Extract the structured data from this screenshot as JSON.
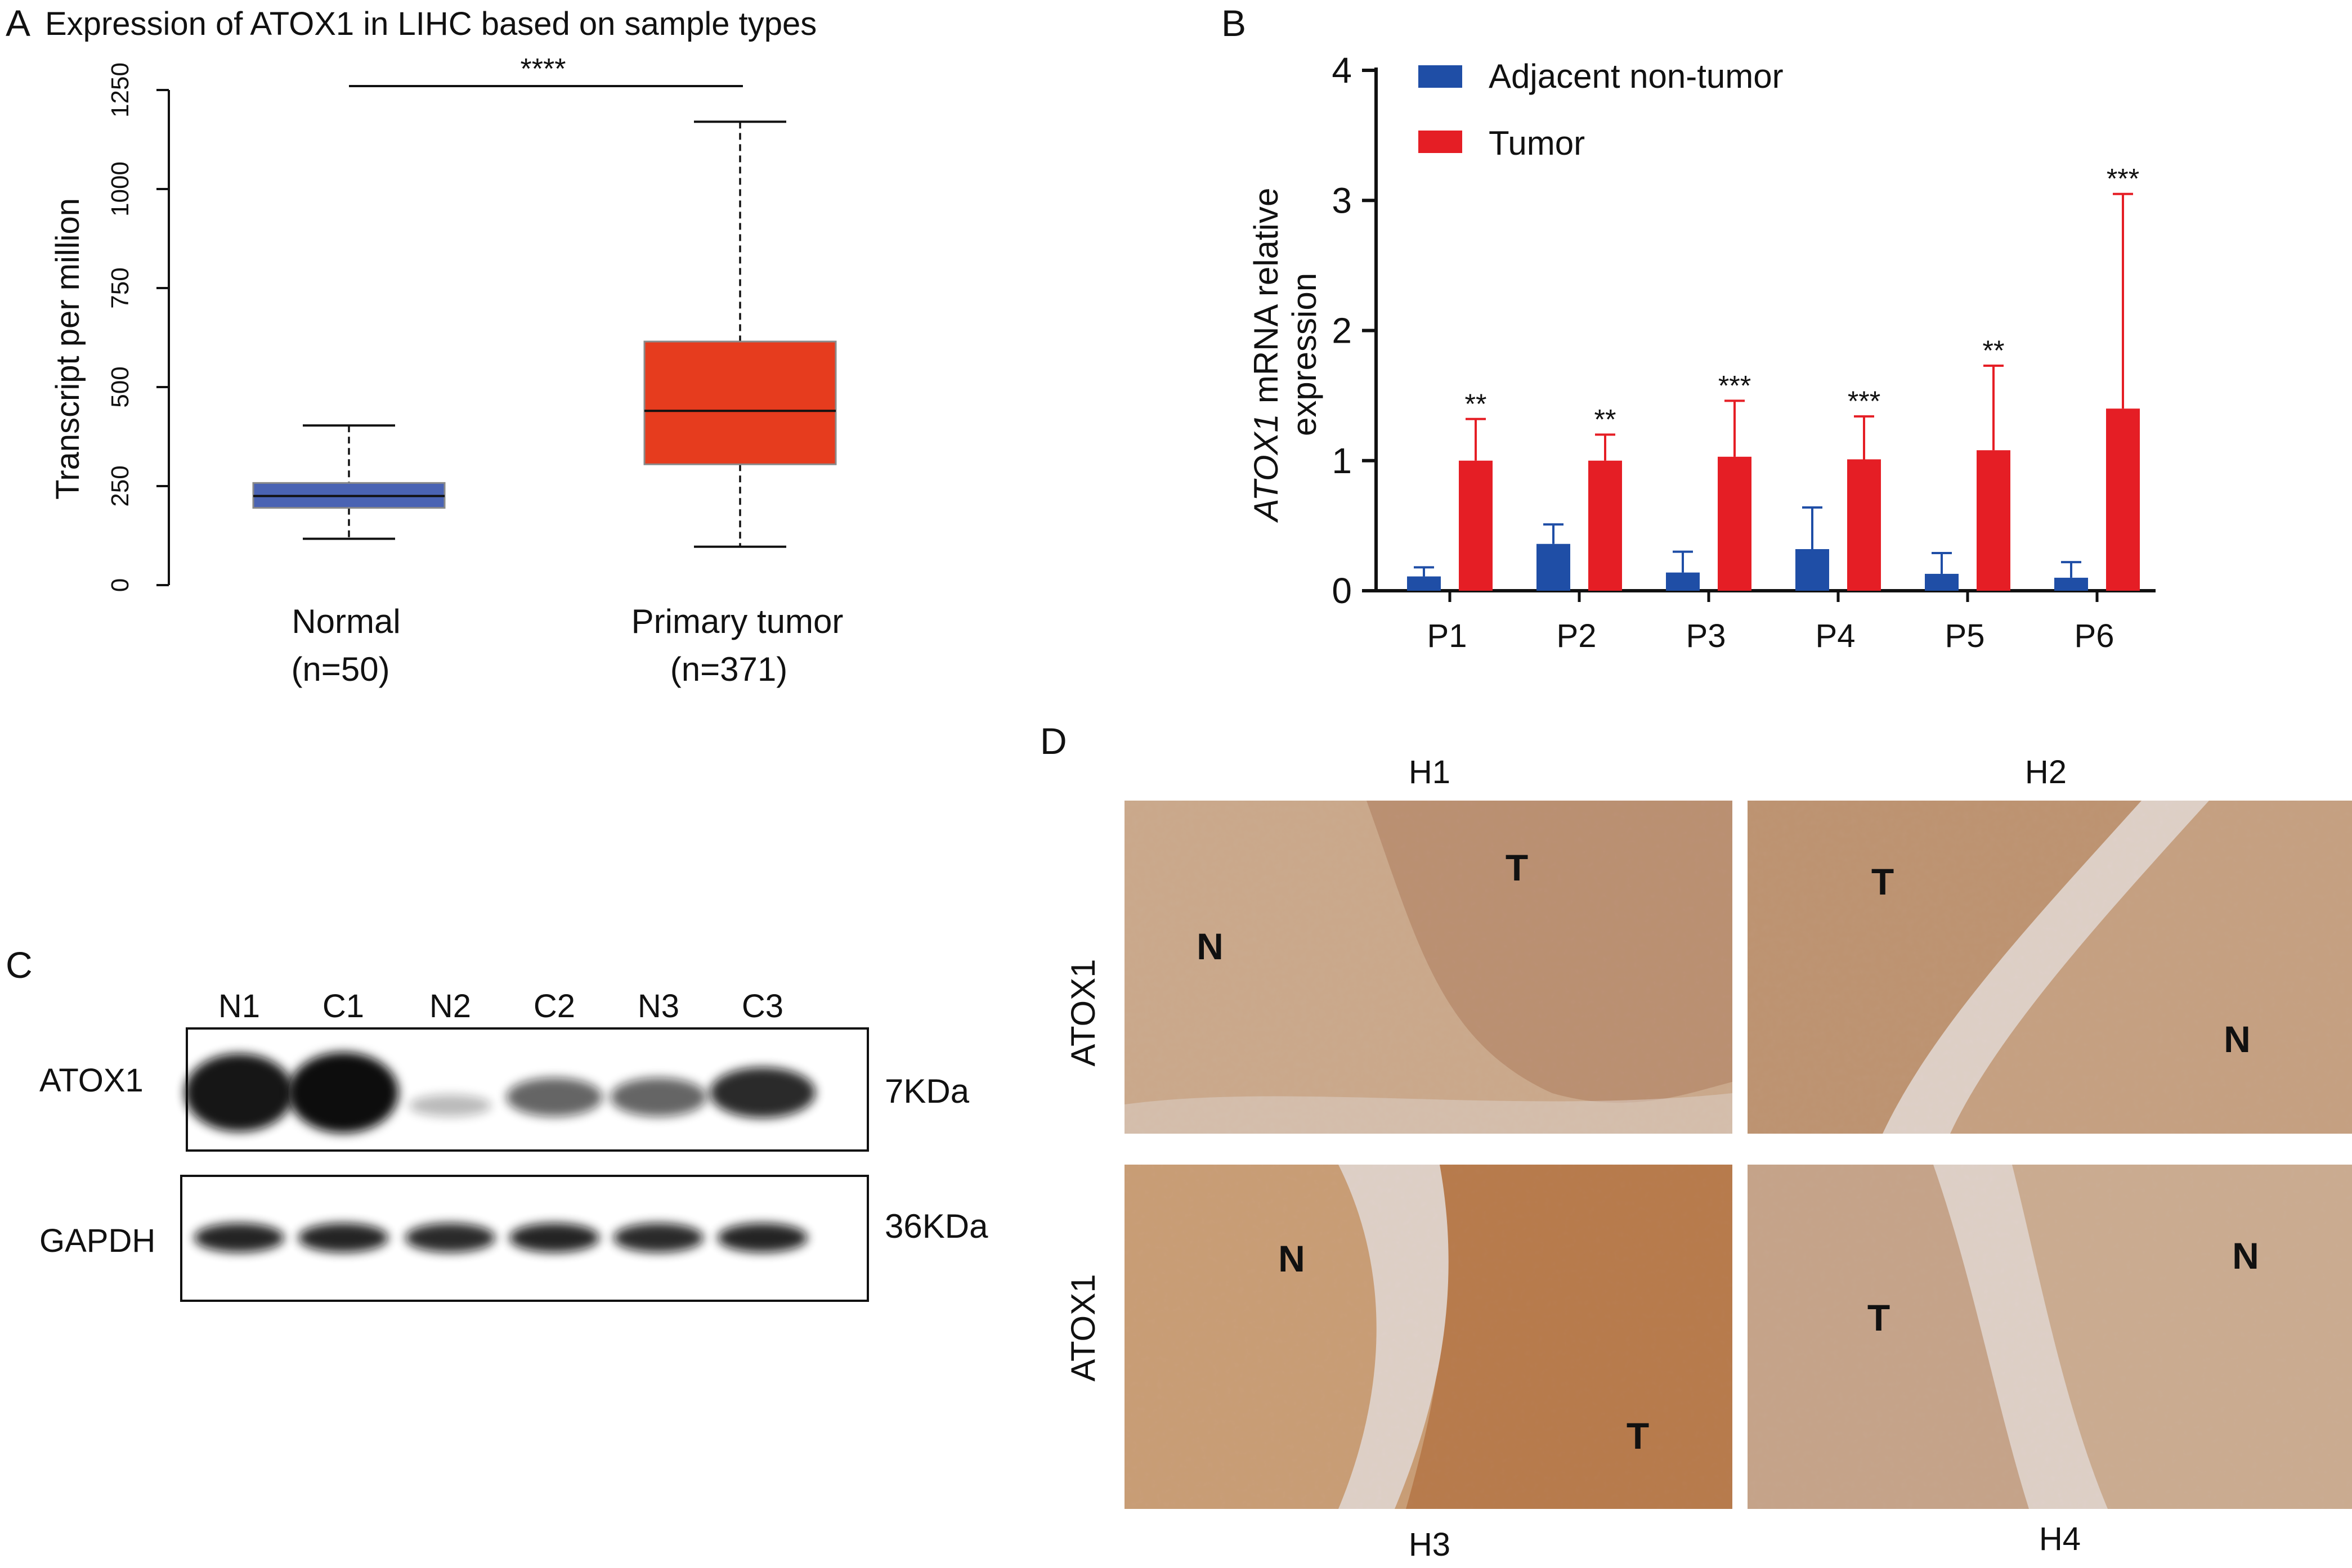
{
  "panel_labels": {
    "a": "A",
    "b": "B",
    "c": "C",
    "d": "D"
  },
  "chart_data": [
    {
      "type": "box",
      "panel": "A",
      "title": "Expression of ATOX1 in LIHC based on sample types",
      "xlabel": "",
      "ylabel": "Transcript per million",
      "ylim": [
        0,
        1250
      ],
      "yticks": [
        "0",
        "250",
        "500",
        "750",
        "1000",
        "1250"
      ],
      "categories": [
        {
          "name": "Normal",
          "n_label": "(n=50)",
          "min": 117,
          "q1": 195,
          "median": 225,
          "q3": 258,
          "max": 403,
          "color": "#4a63b3"
        },
        {
          "name": "Primary tumor",
          "n_label": "(n=371)",
          "min": 97,
          "q1": 305,
          "median": 440,
          "q3": 615,
          "max": 1170,
          "color": "#e63c1e"
        }
      ],
      "significance": "****",
      "grid": false
    },
    {
      "type": "bar",
      "panel": "B",
      "ylabel_italic": "ATOX1",
      "ylabel_rest": "mRNA  relative",
      "ylabel_line2": "expression",
      "xlabel": "",
      "ylim": [
        0,
        4
      ],
      "yticks": [
        "0",
        "1",
        "2",
        "3",
        "4"
      ],
      "categories": [
        "P1",
        "P2",
        "P3",
        "P4",
        "P5",
        "P6"
      ],
      "series": [
        {
          "name": "Adjacent non-tumor",
          "color": "#1f4ea6",
          "values": [
            0.11,
            0.36,
            0.14,
            0.32,
            0.13,
            0.1
          ],
          "errors": [
            0.07,
            0.15,
            0.16,
            0.32,
            0.16,
            0.12
          ]
        },
        {
          "name": "Tumor",
          "color": "#e51e25",
          "values": [
            1.0,
            1.0,
            1.03,
            1.01,
            1.08,
            1.4
          ],
          "errors": [
            0.32,
            0.2,
            0.43,
            0.33,
            0.65,
            1.65
          ]
        }
      ],
      "significance": [
        "**",
        "**",
        "***",
        "***",
        "**",
        "***"
      ],
      "legend_position": "top-left",
      "grid": false
    }
  ],
  "blot": {
    "lanes": [
      "N1",
      "C1",
      "N2",
      "C2",
      "N3",
      "C3"
    ],
    "atox1_label": "ATOX1",
    "atox1_size": "7KDa",
    "gapdh_label": "GAPDH",
    "gapdh_size": "36KDa",
    "atox1_intensity": [
      0.95,
      1.0,
      0.12,
      0.55,
      0.55,
      0.85
    ],
    "gapdh_intensity": [
      0.9,
      0.9,
      0.88,
      0.9,
      0.88,
      0.9
    ]
  },
  "histology": {
    "row_label": "ATOX1",
    "panels": [
      {
        "title": "H1",
        "marks": [
          {
            "text": "T"
          },
          {
            "text": "N"
          }
        ],
        "tumor_color": "#c4956c",
        "normal_color": "#d8b58d"
      },
      {
        "title": "H2",
        "marks": [
          {
            "text": "T"
          },
          {
            "text": "N"
          }
        ],
        "tumor_color": "#c89a6c",
        "normal_color": "#d2aa80"
      },
      {
        "title": "H3",
        "marks": [
          {
            "text": "N"
          },
          {
            "text": "T"
          }
        ],
        "tumor_color": "#c07a3c",
        "normal_color": "#d6a671"
      },
      {
        "title": "H4",
        "marks": [
          {
            "text": "T"
          },
          {
            "text": "N"
          }
        ],
        "tumor_color": "#d2ae8a",
        "normal_color": "#d8b893"
      }
    ],
    "stroma_color": "#f1e6d8"
  }
}
